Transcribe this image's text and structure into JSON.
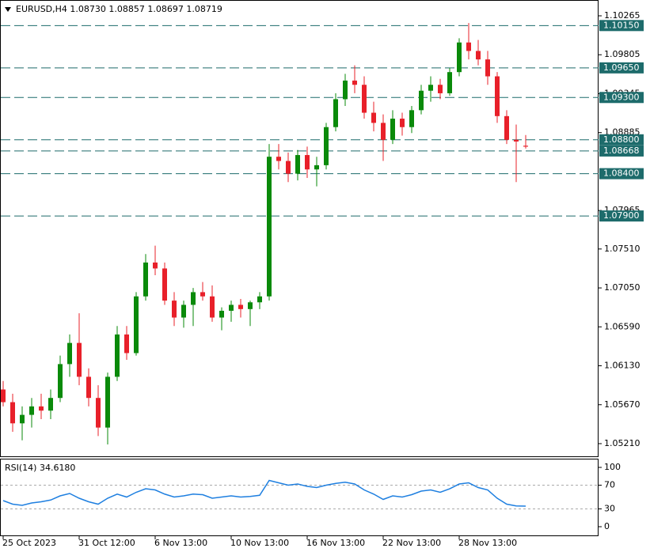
{
  "chart_data": [
    {
      "type": "candlestick",
      "title": "EURUSD,H4  1.08730 1.08857 1.08697 1.08719",
      "categories": [
        "25 Oct 2023",
        null,
        null,
        null,
        null,
        null,
        null,
        null,
        "31 Oct 12:00",
        null,
        null,
        null,
        null,
        null,
        null,
        null,
        "6 Nov 13:00",
        null,
        null,
        null,
        null,
        null,
        null,
        null,
        "10 Nov 13:00",
        null,
        null,
        null,
        null,
        null,
        null,
        null,
        "16 Nov 13:00",
        null,
        null,
        null,
        null,
        null,
        null,
        null,
        "22 Nov 13:00",
        null,
        null,
        null,
        null,
        null,
        null,
        null,
        "28 Nov 13:00",
        null,
        null,
        null,
        null,
        null,
        null,
        null
      ],
      "open": [
        1.0585,
        1.057,
        1.0545,
        1.0555,
        1.0565,
        1.056,
        1.0575,
        1.0615,
        1.064,
        1.06,
        1.0575,
        1.054,
        1.06,
        1.065,
        1.0628,
        1.0695,
        1.0735,
        1.0728,
        1.069,
        1.067,
        1.0685,
        1.07,
        1.0695,
        1.067,
        1.0678,
        1.0685,
        1.068,
        1.0688,
        1.0695,
        1.086,
        1.0855,
        1.084,
        1.0862,
        1.0845,
        1.085,
        1.0895,
        1.0928,
        1.095,
        1.0945,
        1.0912,
        1.09,
        1.088,
        1.0905,
        1.0895,
        1.0915,
        1.0938,
        1.0945,
        1.0935,
        1.096,
        1.0995,
        1.0985,
        1.0975,
        1.0955,
        1.0908,
        1.088,
        1.0873
      ],
      "high": [
        1.0595,
        1.058,
        1.0565,
        1.0575,
        1.058,
        1.0585,
        1.0625,
        1.065,
        1.0675,
        1.061,
        1.059,
        1.0605,
        1.066,
        1.066,
        1.07,
        1.0745,
        1.0755,
        1.0735,
        1.07,
        1.069,
        1.0705,
        1.0712,
        1.0708,
        1.0682,
        1.069,
        1.0692,
        1.069,
        1.07,
        1.0875,
        1.0875,
        1.0865,
        1.0868,
        1.0872,
        1.086,
        1.09,
        1.0935,
        1.0958,
        1.0968,
        1.0955,
        1.0925,
        1.091,
        1.0915,
        1.0912,
        1.092,
        1.0945,
        1.0955,
        1.0952,
        1.0965,
        1.1,
        1.1018,
        1.0998,
        1.0985,
        1.096,
        1.0915,
        1.0898,
        1.08857
      ],
      "low": [
        1.0565,
        1.0535,
        1.0525,
        1.054,
        1.055,
        1.055,
        1.057,
        1.06,
        1.059,
        1.0565,
        1.053,
        1.052,
        1.0595,
        1.062,
        1.0625,
        1.069,
        1.072,
        1.0685,
        1.066,
        1.0658,
        1.066,
        1.069,
        1.0665,
        1.0655,
        1.0665,
        1.067,
        1.066,
        1.068,
        1.069,
        1.0845,
        1.083,
        1.0832,
        1.0835,
        1.0825,
        1.0845,
        1.089,
        1.092,
        1.0935,
        1.0905,
        1.089,
        1.0855,
        1.0875,
        1.0885,
        1.0888,
        1.091,
        1.0925,
        1.0928,
        1.0932,
        1.0955,
        1.0975,
        1.0968,
        1.0945,
        1.09,
        1.0875,
        1.083,
        1.08697
      ],
      "close": [
        1.057,
        1.0545,
        1.0555,
        1.0565,
        1.056,
        1.0575,
        1.0615,
        1.064,
        1.06,
        1.0575,
        1.054,
        1.06,
        1.065,
        1.0628,
        1.0695,
        1.0735,
        1.0728,
        1.069,
        1.067,
        1.0685,
        1.07,
        1.0695,
        1.067,
        1.0678,
        1.0685,
        1.068,
        1.0688,
        1.0695,
        1.086,
        1.0855,
        1.084,
        1.0862,
        1.0845,
        1.085,
        1.0895,
        1.0928,
        1.095,
        1.0945,
        1.0912,
        1.09,
        1.088,
        1.0905,
        1.0895,
        1.0915,
        1.0938,
        1.0945,
        1.0935,
        1.096,
        1.0995,
        1.0985,
        1.0975,
        1.0955,
        1.0908,
        1.088,
        1.0878,
        1.08719
      ],
      "up_color": "#0a8a0a",
      "down_color": "#e8202a",
      "ylim": [
        1.05051,
        1.10452
      ],
      "yticks": [
        1.10265,
        1.09805,
        1.09345,
        1.08885,
        1.07965,
        {
          "value": 1.0751,
          "label": "1.07510"
        },
        {
          "value": 1.0705,
          "label": "1.07050"
        },
        {
          "value": 1.0659,
          "label": "1.06590"
        },
        {
          "value": 1.0613,
          "label": "1.06130"
        },
        {
          "value": 1.0567,
          "label": "1.05670"
        },
        {
          "value": 1.0521,
          "label": "1.05210"
        }
      ],
      "levels": [
        {
          "value": 1.1015,
          "label": "1.10150"
        },
        {
          "value": 1.0965,
          "label": "1.09650"
        },
        {
          "value": 1.093,
          "label": "1.09300"
        },
        {
          "value": 1.088,
          "label": "1.08800"
        },
        {
          "value": 1.08668,
          "label": "1.08668"
        },
        {
          "value": 1.084,
          "label": "1.08400"
        },
        {
          "value": 1.079,
          "label": "1.07900"
        }
      ],
      "level_color": "#1d6b6b"
    },
    {
      "type": "line",
      "title": "RSI(14) 34.6180",
      "values": [
        44,
        38,
        36,
        40,
        42,
        45,
        52,
        56,
        48,
        42,
        38,
        48,
        55,
        50,
        58,
        64,
        62,
        55,
        50,
        52,
        55,
        54,
        48,
        50,
        52,
        50,
        51,
        53,
        78,
        74,
        70,
        72,
        68,
        66,
        70,
        73,
        75,
        72,
        62,
        55,
        46,
        52,
        50,
        54,
        60,
        62,
        58,
        64,
        72,
        74,
        66,
        62,
        48,
        38,
        35,
        34.618
      ],
      "color": "#1e7fe0",
      "ylim": [
        -16,
        114.7
      ],
      "yticks": [
        0,
        30,
        70,
        100
      ],
      "levels": [
        70,
        30
      ]
    }
  ]
}
